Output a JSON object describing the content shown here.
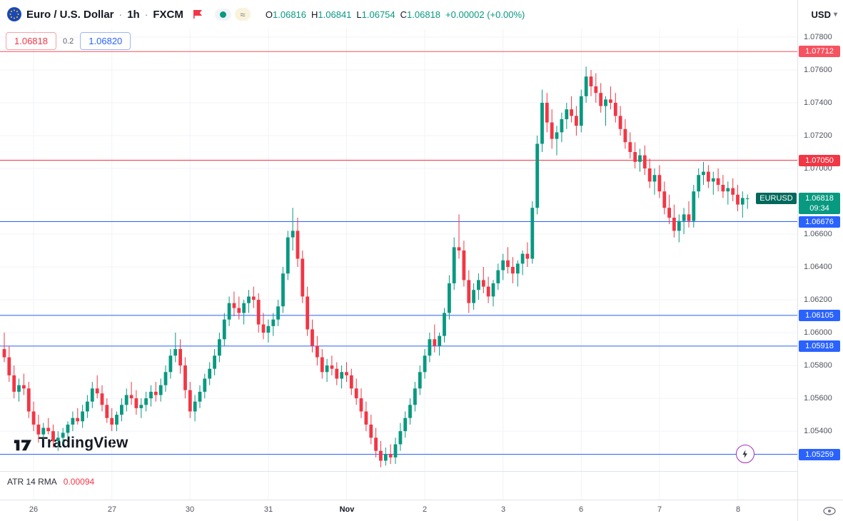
{
  "header": {
    "symbol_title": "Euro / U.S. Dollar",
    "separator": "·",
    "interval": "1h",
    "exchange": "FXCM",
    "approx_symbol": "≈",
    "ohlc": [
      {
        "label": "O",
        "value": "1.06816"
      },
      {
        "label": "H",
        "value": "1.06841"
      },
      {
        "label": "L",
        "value": "1.06754"
      },
      {
        "label": "C",
        "value": "1.06818"
      }
    ],
    "change": "+0.00002 (+0.00%)",
    "currency": "USD"
  },
  "trade_widget": {
    "sell": "1.06818",
    "spread": "0.2",
    "buy": "1.06820"
  },
  "watermark": "TradingView",
  "indicator": {
    "name": "ATR 14 RMA",
    "value": "0.00094"
  },
  "colors": {
    "up": "#089981",
    "down": "#f23645",
    "grid": "#f0f3fa",
    "axis_text": "#50535e",
    "blue_level": "#2962ff",
    "red_level": "#f23645",
    "pink_level": "#f7525f",
    "last_price_bg": "#089981",
    "symbol_tag_bg": "#00695c",
    "lightning_ring": "#a42ebb"
  },
  "chart_data": {
    "type": "candlestick",
    "symbol": "EURUSD",
    "interval": "1h",
    "title": "Euro / U.S. Dollar · 1h · FXCM",
    "price_range": {
      "top": 1.07852,
      "bottom": 1.05157
    },
    "y_axis_ticks": [
      "1.07800",
      "1.07600",
      "1.07400",
      "1.07200",
      "1.07000",
      "1.06600",
      "1.06400",
      "1.06200",
      "1.06000",
      "1.05800",
      "1.05600",
      "1.05400"
    ],
    "levels": [
      {
        "price": 1.07712,
        "label": "1.07712",
        "color": "#f7525f"
      },
      {
        "price": 1.0705,
        "label": "1.07050",
        "color": "#f23645"
      },
      {
        "price": 1.06676,
        "label": "1.06676",
        "color": "#2962ff"
      },
      {
        "price": 1.06105,
        "label": "1.06105",
        "color": "#2962ff"
      },
      {
        "price": 1.05918,
        "label": "1.05918",
        "color": "#2962ff"
      },
      {
        "price": 1.05259,
        "label": "1.05259",
        "color": "#2962ff"
      }
    ],
    "last_price": {
      "value": "1.06818",
      "countdown": "09:34",
      "tag": "EURUSD",
      "bg": "#089981",
      "tag_bg": "#00695c"
    },
    "x_ticks": [
      {
        "label": "26",
        "index": 6
      },
      {
        "label": "27",
        "index": 22
      },
      {
        "label": "30",
        "index": 38
      },
      {
        "label": "31",
        "index": 54
      },
      {
        "label": "Nov",
        "index": 70,
        "bold": true
      },
      {
        "label": "2",
        "index": 86
      },
      {
        "label": "3",
        "index": 102
      },
      {
        "label": "6",
        "index": 118
      },
      {
        "label": "7",
        "index": 134
      },
      {
        "label": "8",
        "index": 150
      }
    ],
    "candles": [
      [
        1.059,
        1.06,
        1.0582,
        1.0585
      ],
      [
        1.0585,
        1.0592,
        1.057,
        1.0574
      ],
      [
        1.0574,
        1.058,
        1.056,
        1.0564
      ],
      [
        1.0564,
        1.0572,
        1.0558,
        1.0568
      ],
      [
        1.0568,
        1.0575,
        1.0562,
        1.0566
      ],
      [
        1.0566,
        1.057,
        1.0548,
        1.0552
      ],
      [
        1.0552,
        1.0558,
        1.054,
        1.0544
      ],
      [
        1.0544,
        1.055,
        1.0533,
        1.0538
      ],
      [
        1.0538,
        1.0545,
        1.0535,
        1.0542
      ],
      [
        1.0542,
        1.0548,
        1.0538,
        1.054
      ],
      [
        1.054,
        1.0544,
        1.053,
        1.0534
      ],
      [
        1.0534,
        1.054,
        1.0528,
        1.0536
      ],
      [
        1.0536,
        1.0542,
        1.0532,
        1.0539
      ],
      [
        1.0539,
        1.0546,
        1.0536,
        1.0544
      ],
      [
        1.0544,
        1.0552,
        1.054,
        1.0548
      ],
      [
        1.0548,
        1.0554,
        1.0544,
        1.0546
      ],
      [
        1.0546,
        1.0556,
        1.0542,
        1.0552
      ],
      [
        1.0552,
        1.0562,
        1.0548,
        1.0558
      ],
      [
        1.0558,
        1.057,
        1.0554,
        1.0566
      ],
      [
        1.0566,
        1.0574,
        1.056,
        1.0563
      ],
      [
        1.0563,
        1.0568,
        1.0552,
        1.0556
      ],
      [
        1.0556,
        1.056,
        1.0545,
        1.0548
      ],
      [
        1.0548,
        1.0554,
        1.054,
        1.0544
      ],
      [
        1.0544,
        1.0552,
        1.054,
        1.055
      ],
      [
        1.055,
        1.056,
        1.0546,
        1.0556
      ],
      [
        1.0556,
        1.0566,
        1.0552,
        1.0562
      ],
      [
        1.0562,
        1.057,
        1.0556,
        1.056
      ],
      [
        1.056,
        1.0565,
        1.055,
        1.0554
      ],
      [
        1.0554,
        1.056,
        1.0548,
        1.0556
      ],
      [
        1.0556,
        1.0564,
        1.0552,
        1.056
      ],
      [
        1.056,
        1.0568,
        1.0555,
        1.0564
      ],
      [
        1.0564,
        1.057,
        1.0558,
        1.0562
      ],
      [
        1.0562,
        1.0572,
        1.0558,
        1.0568
      ],
      [
        1.0568,
        1.058,
        1.0564,
        1.0576
      ],
      [
        1.0576,
        1.059,
        1.0572,
        1.0586
      ],
      [
        1.0586,
        1.06,
        1.0582,
        1.059
      ],
      [
        1.059,
        1.0596,
        1.0575,
        1.058
      ],
      [
        1.058,
        1.0585,
        1.056,
        1.0565
      ],
      [
        1.0565,
        1.057,
        1.0548,
        1.0552
      ],
      [
        1.0552,
        1.0562,
        1.0546,
        1.0558
      ],
      [
        1.0558,
        1.0568,
        1.0554,
        1.0564
      ],
      [
        1.0564,
        1.0575,
        1.056,
        1.0572
      ],
      [
        1.0572,
        1.0582,
        1.0568,
        1.0578
      ],
      [
        1.0578,
        1.059,
        1.0574,
        1.0586
      ],
      [
        1.0586,
        1.06,
        1.0582,
        1.0596
      ],
      [
        1.0596,
        1.0612,
        1.0592,
        1.0608
      ],
      [
        1.0608,
        1.0622,
        1.0604,
        1.0618
      ],
      [
        1.0618,
        1.0625,
        1.061,
        1.0615
      ],
      [
        1.0615,
        1.0622,
        1.0608,
        1.0612
      ],
      [
        1.0612,
        1.062,
        1.0605,
        1.0618
      ],
      [
        1.0618,
        1.0626,
        1.0612,
        1.0622
      ],
      [
        1.0622,
        1.0628,
        1.0615,
        1.062
      ],
      [
        1.062,
        1.0624,
        1.06,
        1.0605
      ],
      [
        1.0605,
        1.0612,
        1.0596,
        1.06
      ],
      [
        1.06,
        1.0608,
        1.0594,
        1.0604
      ],
      [
        1.0604,
        1.0612,
        1.0598,
        1.0608
      ],
      [
        1.0608,
        1.062,
        1.0604,
        1.0616
      ],
      [
        1.0616,
        1.064,
        1.0612,
        1.0636
      ],
      [
        1.0636,
        1.0662,
        1.0632,
        1.0658
      ],
      [
        1.0658,
        1.0676,
        1.065,
        1.0662
      ],
      [
        1.0662,
        1.067,
        1.064,
        1.0645
      ],
      [
        1.0645,
        1.065,
        1.0618,
        1.0622
      ],
      [
        1.0622,
        1.0628,
        1.0598,
        1.0602
      ],
      [
        1.0602,
        1.0608,
        1.0588,
        1.0592
      ],
      [
        1.0592,
        1.0598,
        1.058,
        1.0585
      ],
      [
        1.0585,
        1.059,
        1.0572,
        1.0576
      ],
      [
        1.0576,
        1.0584,
        1.057,
        1.058
      ],
      [
        1.058,
        1.0586,
        1.0574,
        1.0578
      ],
      [
        1.0578,
        1.0582,
        1.0568,
        1.0572
      ],
      [
        1.0572,
        1.058,
        1.0566,
        1.0576
      ],
      [
        1.0576,
        1.0582,
        1.057,
        1.0574
      ],
      [
        1.0574,
        1.0578,
        1.0562,
        1.0566
      ],
      [
        1.0566,
        1.0572,
        1.0556,
        1.056
      ],
      [
        1.056,
        1.0566,
        1.0548,
        1.0552
      ],
      [
        1.0552,
        1.0558,
        1.054,
        1.0544
      ],
      [
        1.0544,
        1.055,
        1.0532,
        1.0536
      ],
      [
        1.0536,
        1.0542,
        1.0524,
        1.0528
      ],
      [
        1.0528,
        1.0534,
        1.0518,
        1.0522
      ],
      [
        1.0522,
        1.053,
        1.0519,
        1.0526
      ],
      [
        1.0526,
        1.0532,
        1.052,
        1.0524
      ],
      [
        1.0524,
        1.0536,
        1.052,
        1.0532
      ],
      [
        1.0532,
        1.0545,
        1.0528,
        1.054
      ],
      [
        1.054,
        1.0552,
        1.0536,
        1.0548
      ],
      [
        1.0548,
        1.056,
        1.0544,
        1.0556
      ],
      [
        1.0556,
        1.057,
        1.0552,
        1.0566
      ],
      [
        1.0566,
        1.058,
        1.0562,
        1.0576
      ],
      [
        1.0576,
        1.059,
        1.0572,
        1.0586
      ],
      [
        1.0586,
        1.06,
        1.0582,
        1.0596
      ],
      [
        1.0596,
        1.0605,
        1.0588,
        1.0592
      ],
      [
        1.0592,
        1.06,
        1.0586,
        1.0598
      ],
      [
        1.0598,
        1.0615,
        1.0594,
        1.0612
      ],
      [
        1.0612,
        1.0635,
        1.0608,
        1.063
      ],
      [
        1.063,
        1.0658,
        1.0626,
        1.0652
      ],
      [
        1.0652,
        1.0672,
        1.0645,
        1.065
      ],
      [
        1.065,
        1.0656,
        1.0628,
        1.0632
      ],
      [
        1.0632,
        1.0638,
        1.0612,
        1.0618
      ],
      [
        1.0618,
        1.063,
        1.0614,
        1.0626
      ],
      [
        1.0626,
        1.0636,
        1.062,
        1.0632
      ],
      [
        1.0632,
        1.064,
        1.0624,
        1.0628
      ],
      [
        1.0628,
        1.0634,
        1.0618,
        1.0622
      ],
      [
        1.0622,
        1.0632,
        1.0616,
        1.063
      ],
      [
        1.063,
        1.0642,
        1.0626,
        1.0638
      ],
      [
        1.0638,
        1.0648,
        1.0632,
        1.0644
      ],
      [
        1.0644,
        1.0652,
        1.0636,
        1.064
      ],
      [
        1.064,
        1.0646,
        1.063,
        1.0636
      ],
      [
        1.0636,
        1.0644,
        1.0628,
        1.0642
      ],
      [
        1.0642,
        1.065,
        1.0635,
        1.0648
      ],
      [
        1.0648,
        1.0655,
        1.064,
        1.0645
      ],
      [
        1.0645,
        1.068,
        1.0642,
        1.0676
      ],
      [
        1.0676,
        1.072,
        1.0672,
        1.0715
      ],
      [
        1.0715,
        1.0748,
        1.071,
        1.074
      ],
      [
        1.074,
        1.0746,
        1.0722,
        1.0728
      ],
      [
        1.0728,
        1.0736,
        1.0712,
        1.0718
      ],
      [
        1.0718,
        1.0726,
        1.0708,
        1.0722
      ],
      [
        1.0722,
        1.0734,
        1.0716,
        1.073
      ],
      [
        1.073,
        1.074,
        1.0724,
        1.0736
      ],
      [
        1.0736,
        1.0744,
        1.0728,
        1.0732
      ],
      [
        1.0732,
        1.0738,
        1.072,
        1.0726
      ],
      [
        1.0726,
        1.0748,
        1.0722,
        1.0744
      ],
      [
        1.0744,
        1.0762,
        1.074,
        1.0756
      ],
      [
        1.0756,
        1.076,
        1.0744,
        1.075
      ],
      [
        1.075,
        1.0758,
        1.074,
        1.0746
      ],
      [
        1.0746,
        1.0752,
        1.0734,
        1.0738
      ],
      [
        1.0738,
        1.0744,
        1.0726,
        1.0742
      ],
      [
        1.0742,
        1.075,
        1.0736,
        1.074
      ],
      [
        1.074,
        1.0746,
        1.0728,
        1.0732
      ],
      [
        1.0732,
        1.0738,
        1.072,
        1.0724
      ],
      [
        1.0724,
        1.073,
        1.0712,
        1.0716
      ],
      [
        1.0716,
        1.0722,
        1.0706,
        1.071
      ],
      [
        1.071,
        1.0716,
        1.07,
        1.0704
      ],
      [
        1.0704,
        1.0712,
        1.0698,
        1.0708
      ],
      [
        1.0708,
        1.0714,
        1.0696,
        1.07
      ],
      [
        1.07,
        1.0706,
        1.0688,
        1.0692
      ],
      [
        1.0692,
        1.07,
        1.0684,
        1.0696
      ],
      [
        1.0696,
        1.0702,
        1.0682,
        1.0686
      ],
      [
        1.0686,
        1.0692,
        1.0672,
        1.0676
      ],
      [
        1.0676,
        1.0684,
        1.0666,
        1.067
      ],
      [
        1.067,
        1.0678,
        1.0658,
        1.0662
      ],
      [
        1.0662,
        1.0672,
        1.0655,
        1.0668
      ],
      [
        1.0668,
        1.0676,
        1.066,
        1.0672
      ],
      [
        1.0672,
        1.068,
        1.0664,
        1.0668
      ],
      [
        1.0668,
        1.069,
        1.0664,
        1.0686
      ],
      [
        1.0686,
        1.07,
        1.0682,
        1.0696
      ],
      [
        1.0696,
        1.0704,
        1.069,
        1.0698
      ],
      [
        1.0698,
        1.0702,
        1.0688,
        1.0692
      ],
      [
        1.0692,
        1.0698,
        1.0684,
        1.0694
      ],
      [
        1.0694,
        1.07,
        1.0686,
        1.069
      ],
      [
        1.069,
        1.0696,
        1.0682,
        1.0686
      ],
      [
        1.0686,
        1.0692,
        1.0678,
        1.0688
      ],
      [
        1.0688,
        1.0694,
        1.068,
        1.0684
      ],
      [
        1.0684,
        1.069,
        1.0674,
        1.0678
      ],
      [
        1.0678,
        1.0686,
        1.067,
        1.0682
      ],
      [
        1.06816,
        1.06841,
        1.06754,
        1.06818
      ]
    ]
  }
}
